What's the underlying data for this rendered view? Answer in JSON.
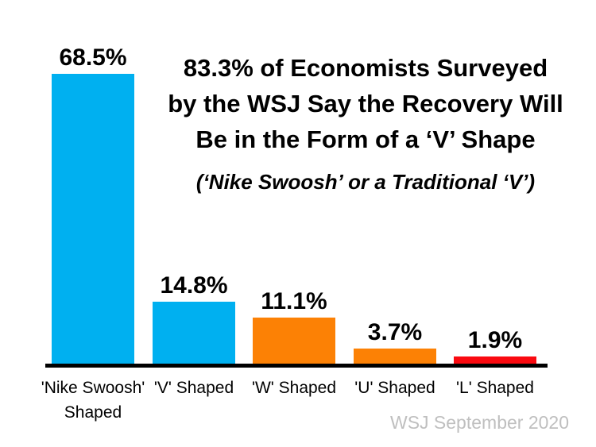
{
  "title": {
    "lines": [
      "83.3% of Economists Surveyed",
      "by the WSJ Say the Recovery Will",
      "Be in the Form of a ‘V’ Shape"
    ],
    "subtitle": "(‘Nike Swoosh’ or a Traditional ‘V’)"
  },
  "footer": {
    "source": "WSJ September 2020"
  },
  "colors": {
    "bar_blue": "#00B0F0",
    "bar_orange": "#FC8105",
    "bar_red": "#FA0A10",
    "axis": "#000000",
    "title_text": "#000000",
    "source_text": "#BFBFBF",
    "background": "#FFFFFF"
  },
  "chart_data": {
    "type": "bar",
    "title": "83.3% of Economists Surveyed by the WSJ Say the Recovery Will Be in the Form of a ‘V’ Shape",
    "subtitle": "(‘Nike Swoosh’ or a Traditional ‘V’)",
    "categories": [
      "'Nike Swoosh' Shaped",
      "'V' Shaped",
      "'W' Shaped",
      "'U' Shaped",
      "'L' Shaped"
    ],
    "values": [
      68.5,
      14.8,
      11.1,
      3.7,
      1.9
    ],
    "value_labels": [
      "68.5%",
      "14.8%",
      "11.1%",
      "3.7%",
      "1.9%"
    ],
    "bar_colors": [
      "#00B0F0",
      "#00B0F0",
      "#FC8105",
      "#FC8105",
      "#FA0A10"
    ],
    "unit": "%",
    "ylim": [
      0,
      70
    ],
    "grid": false,
    "y_axis_shown": false,
    "value_labels_position": "above-bars",
    "source": "WSJ September 2020"
  }
}
